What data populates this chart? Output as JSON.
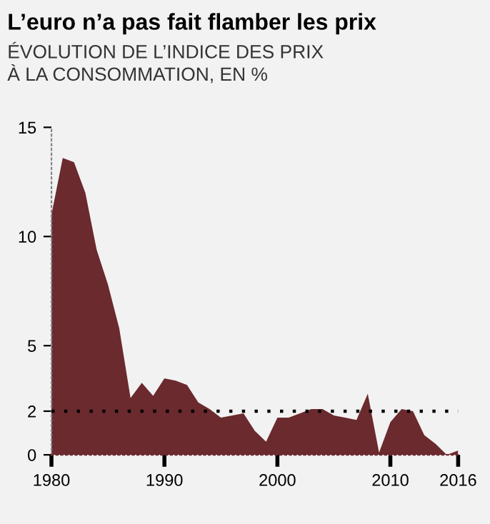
{
  "chart_data": {
    "type": "area",
    "title": "L’euro n’a pas fait flamber les prix",
    "subtitle": "ÉVOLUTION DE L’INDICE DES PRIX\nÀ LA CONSOMMATION, EN %",
    "x": [
      1980,
      1981,
      1982,
      1983,
      1984,
      1985,
      1986,
      1987,
      1988,
      1989,
      1990,
      1991,
      1992,
      1993,
      1994,
      1995,
      1996,
      1997,
      1998,
      1999,
      2000,
      2001,
      2002,
      2003,
      2004,
      2005,
      2006,
      2007,
      2008,
      2009,
      2010,
      2011,
      2012,
      2013,
      2014,
      2015,
      2016
    ],
    "series": [
      {
        "color": "#6b2a2e",
        "values": [
          11.0,
          13.6,
          13.4,
          12.0,
          9.4,
          7.8,
          5.8,
          2.6,
          3.3,
          2.7,
          3.5,
          3.4,
          3.2,
          2.4,
          2.1,
          1.7,
          1.8,
          1.9,
          1.1,
          0.6,
          1.7,
          1.7,
          1.9,
          2.1,
          2.1,
          1.8,
          1.7,
          1.6,
          2.8,
          0.1,
          1.5,
          2.1,
          2.0,
          0.9,
          0.5,
          0.0,
          0.2
        ]
      }
    ],
    "xlim": [
      1980,
      2016
    ],
    "ylim": [
      0,
      15
    ],
    "xticks": [
      1980,
      1990,
      2000,
      2010,
      2016
    ],
    "yticks": [
      0,
      2,
      5,
      10,
      15
    ],
    "ref_lines": [
      {
        "axis": "y",
        "value": 2,
        "line_style": "dotted",
        "color": "#000000"
      }
    ],
    "grid": false,
    "legend": false
  }
}
